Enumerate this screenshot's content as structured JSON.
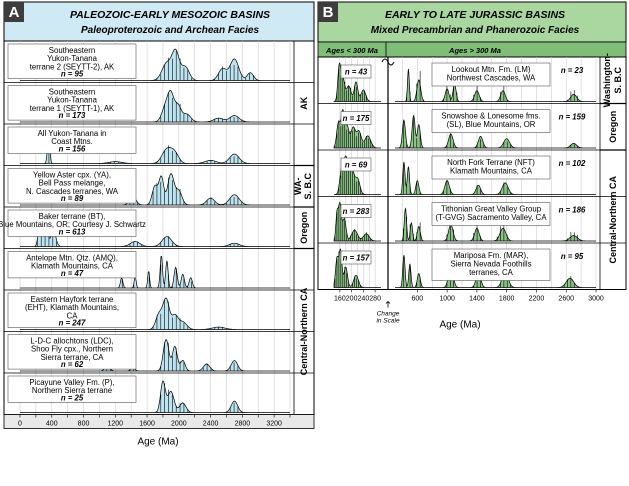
{
  "colors": {
    "blue_fill": "#bfe4f1",
    "blue_header": "#cfeaf5",
    "green_fill": "#8bc487",
    "green_header": "#a9d79f",
    "green_subheader": "#7fbd78",
    "badge_bg": "#3d3d3d",
    "grid": "#cfcfcf",
    "axis_band": "#e9e9e9"
  },
  "chart_data": [
    {
      "type": "area",
      "panel_letter": "A",
      "title": "PALEOZOIC-EARLY MESOZOIC BASINS",
      "subtitle": "Paleoproterozoic and Archean Facies",
      "xlabel": "Age (Ma)",
      "xlim": [
        0,
        3400
      ],
      "x_ticks": [
        0,
        200,
        400,
        600,
        800,
        1000,
        1200,
        1400,
        1600,
        1800,
        2000,
        2200,
        2400,
        2600,
        2800,
        3000,
        3200,
        3400
      ],
      "x_tick_labels": [
        "0",
        "400",
        "800",
        "1200",
        "1600",
        "2000",
        "2400",
        "2800",
        "3200"
      ],
      "group_labels": [
        "AK",
        "WA-\nS. B.C",
        "Oregon",
        "Central-Northern CA"
      ],
      "samples": [
        {
          "label": "Southeastern\nYukon-Tanana\nterrane 2 (SEYTT-2), AK",
          "n": "n = 95",
          "peaks": [
            [
              1850,
              0.45,
              60
            ],
            [
              1960,
              0.7,
              45
            ],
            [
              2080,
              0.35,
              50
            ],
            [
              2700,
              0.55,
              55
            ],
            [
              2550,
              0.3,
              50
            ],
            [
              2900,
              0.2,
              40
            ]
          ]
        },
        {
          "label": "Southeastern\nYukon-Tanana\nterrane 1 (SEYTT-1), AK",
          "n": "n = 173",
          "peaks": [
            [
              1830,
              0.55,
              45
            ],
            [
              1900,
              1.0,
              40
            ],
            [
              1990,
              0.6,
              40
            ],
            [
              2100,
              0.3,
              50
            ],
            [
              2500,
              0.15,
              60
            ],
            [
              2700,
              0.25,
              60
            ]
          ]
        },
        {
          "label": "All Yukon-Tanana in\nCoast Mtns.",
          "n": "n = 156",
          "peaks": [
            [
              360,
              1.0,
              14
            ],
            [
              1850,
              0.45,
              60
            ],
            [
              1950,
              0.3,
              50
            ],
            [
              2700,
              0.3,
              60
            ],
            [
              1200,
              0.06,
              80
            ],
            [
              2400,
              0.1,
              70
            ]
          ]
        },
        {
          "label": "Yellow Aster cpx. (YA),\nBell Pass melange,\nN. Cascades terranes, WA",
          "n": "n = 89",
          "peaks": [
            [
              1420,
              0.25,
              40
            ],
            [
              1700,
              0.55,
              35
            ],
            [
              1780,
              0.8,
              30
            ],
            [
              1900,
              0.9,
              40
            ],
            [
              2000,
              0.4,
              40
            ],
            [
              2400,
              0.2,
              50
            ],
            [
              2700,
              0.3,
              60
            ]
          ]
        },
        {
          "label": "Baker terrane (BT),\nBlue Mountains, OR; Courtesy J. Schwartz",
          "n": "n = 613",
          "peaks": [
            [
              250,
              0.8,
              20
            ],
            [
              320,
              0.95,
              25
            ],
            [
              420,
              0.5,
              30
            ],
            [
              1450,
              0.15,
              60
            ],
            [
              1850,
              0.3,
              60
            ],
            [
              2700,
              0.1,
              60
            ]
          ]
        },
        {
          "label": "Antelope Mtn. Qtz. (AMQ),\nKlamath Mountains, CA",
          "n": "n = 47",
          "peaks": [
            [
              1280,
              0.3,
              15
            ],
            [
              1450,
              0.35,
              12
            ],
            [
              1620,
              0.5,
              12
            ],
            [
              1780,
              0.95,
              15
            ],
            [
              1850,
              0.8,
              15
            ],
            [
              1960,
              0.6,
              20
            ],
            [
              2050,
              0.4,
              20
            ],
            [
              2150,
              0.3,
              20
            ]
          ]
        },
        {
          "label": "Eastern Hayfork terrane\n(EHT), Klamath Mountains,\nCA",
          "n": "n = 247",
          "peaks": [
            [
              1750,
              0.5,
              40
            ],
            [
              1840,
              1.0,
              40
            ],
            [
              1950,
              0.45,
              40
            ],
            [
              2050,
              0.25,
              50
            ],
            [
              2500,
              0.08,
              80
            ]
          ]
        },
        {
          "label": "L-D-C allochtons (LDC),\nShoo Fly cpx., Northern\nSierra terrane, CA",
          "n": "n = 62",
          "peaks": [
            [
              1100,
              0.15,
              30
            ],
            [
              1420,
              0.1,
              25
            ],
            [
              1840,
              0.9,
              35
            ],
            [
              1950,
              0.7,
              30
            ],
            [
              2050,
              0.3,
              30
            ],
            [
              2350,
              0.2,
              40
            ],
            [
              2700,
              0.3,
              40
            ]
          ]
        },
        {
          "label": "Picayune Valley Fm. (P),\nNorthern Sierra terrane",
          "n": "n = 25",
          "peaks": [
            [
              1800,
              0.8,
              30
            ],
            [
              1900,
              0.55,
              40
            ],
            [
              2050,
              0.25,
              40
            ],
            [
              2700,
              0.3,
              40
            ]
          ]
        }
      ]
    },
    {
      "type": "area",
      "panel_letter": "B",
      "title": "EARLY TO LATE JURASSIC BASINS",
      "subtitle": "Mixed Precambrian and Phanerozoic Facies",
      "header_left": "Ages < 300 Ma",
      "header_right": "Ages > 300 Ma",
      "xlabel": "Age (Ma)",
      "scale_break_label": "Change\nin Scale",
      "left_xlim": [
        140,
        300
      ],
      "left_x_ticks": [
        160,
        200,
        240,
        280
      ],
      "right_xlim": [
        300,
        3000
      ],
      "right_x_ticks": [
        600,
        1000,
        1400,
        1800,
        2200,
        2600,
        3000
      ],
      "group_labels": [
        "Washington-\nS. B.C",
        "Oregon",
        "Central-Northern CA"
      ],
      "samples": [
        {
          "label": "Lookout Mtn. Fm. (LM)\nNorthwest Cascades, WA",
          "n_left": "n = 43",
          "n_right": "n = 23",
          "left_peaks": [
            [
              158,
              0.9,
              5
            ],
            [
              170,
              0.6,
              6
            ],
            [
              190,
              0.4,
              8
            ],
            [
              215,
              0.5,
              6
            ],
            [
              240,
              0.3,
              8
            ]
          ],
          "right_peaks": [
            [
              480,
              0.9,
              12
            ],
            [
              620,
              0.6,
              25
            ],
            [
              1000,
              0.35,
              25
            ],
            [
              1100,
              0.5,
              20
            ],
            [
              1400,
              0.3,
              30
            ],
            [
              1750,
              0.3,
              30
            ],
            [
              2700,
              0.2,
              40
            ]
          ]
        },
        {
          "label": "Snowshoe & Lonesome fms.\n(SL), Blue Mountains, OR",
          "n_left": "n = 175",
          "n_right": "n = 159",
          "left_peaks": [
            [
              155,
              0.6,
              6
            ],
            [
              170,
              0.9,
              6
            ],
            [
              185,
              0.5,
              6
            ],
            [
              205,
              0.5,
              8
            ],
            [
              225,
              0.4,
              8
            ],
            [
              255,
              0.3,
              10
            ]
          ],
          "right_peaks": [
            [
              420,
              0.6,
              20
            ],
            [
              550,
              0.7,
              20
            ],
            [
              620,
              0.5,
              20
            ],
            [
              1050,
              0.3,
              30
            ],
            [
              1450,
              0.25,
              30
            ],
            [
              1800,
              0.2,
              40
            ],
            [
              2700,
              0.1,
              40
            ]
          ]
        },
        {
          "label": "North Fork Terrane (NFT)\nKlamath Mountains, CA",
          "n_left": "n = 69",
          "n_right": "n = 102",
          "left_peaks": [
            [
              165,
              0.4,
              6
            ],
            [
              180,
              0.7,
              8
            ],
            [
              200,
              0.5,
              8
            ],
            [
              220,
              0.3,
              8
            ]
          ],
          "right_peaks": [
            [
              420,
              0.7,
              15
            ],
            [
              480,
              0.6,
              15
            ],
            [
              600,
              0.3,
              20
            ],
            [
              1000,
              0.3,
              30
            ],
            [
              1420,
              0.2,
              30
            ],
            [
              1780,
              0.25,
              40
            ]
          ]
        },
        {
          "label": "Tithonian Great Valley Group\n(T-GVG) Sacramento Valley, CA",
          "n_left": "n = 283",
          "n_right": "n = 186",
          "left_peaks": [
            [
              150,
              0.7,
              4
            ],
            [
              160,
              1.0,
              5
            ],
            [
              175,
              0.6,
              6
            ],
            [
              210,
              0.3,
              10
            ],
            [
              250,
              0.2,
              10
            ]
          ],
          "right_peaks": [
            [
              440,
              0.9,
              15
            ],
            [
              520,
              0.5,
              15
            ],
            [
              620,
              0.4,
              20
            ],
            [
              1050,
              0.45,
              30
            ],
            [
              1400,
              0.35,
              30
            ],
            [
              1750,
              0.35,
              40
            ],
            [
              2700,
              0.15,
              50
            ]
          ]
        },
        {
          "label": "Mariposa Fm. (MAR),\nSierra Nevada Foothills\nterranes, CA",
          "n_left": "n = 157",
          "n_right": "n = 95",
          "left_peaks": [
            [
              150,
              0.7,
              5
            ],
            [
              162,
              0.9,
              5
            ],
            [
              180,
              0.5,
              6
            ],
            [
              215,
              0.3,
              8
            ]
          ],
          "right_peaks": [
            [
              420,
              0.7,
              15
            ],
            [
              500,
              0.5,
              15
            ],
            [
              620,
              0.3,
              20
            ],
            [
              1050,
              0.5,
              30
            ],
            [
              1420,
              0.35,
              30
            ],
            [
              1780,
              0.35,
              40
            ],
            [
              2650,
              0.2,
              50
            ]
          ]
        }
      ]
    }
  ]
}
